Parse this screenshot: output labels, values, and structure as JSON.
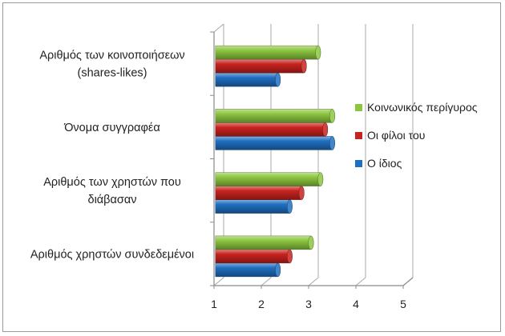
{
  "chart_data": {
    "type": "bar",
    "orientation": "horizontal",
    "style": "3d-cylinder",
    "categories": [
      [
        "Αριθμός  χρηστών συνδεδεμένοι"
      ],
      [
        "Αριθμός των χρηστών που",
        "διάβασαν"
      ],
      [
        "Όνομα συγγραφέα"
      ],
      [
        "Αριθμός των κοινοποιήσεων",
        "(shares-likes)"
      ]
    ],
    "series": [
      {
        "name": "Ο ίδιος",
        "color": "#1f6fc1",
        "values": [
          2.35,
          2.6,
          3.5,
          2.35
        ]
      },
      {
        "name": "Οι φίλοι του",
        "color": "#c8221e",
        "values": [
          2.6,
          2.85,
          3.35,
          2.9
        ]
      },
      {
        "name": "Κοινωνικός περίγυρος",
        "color": "#8cc63f",
        "values": [
          3.05,
          3.25,
          3.5,
          3.2
        ]
      }
    ],
    "xlim": [
      1,
      5
    ],
    "xticks": [
      "1",
      "2",
      "3",
      "4",
      "5"
    ],
    "grid": true,
    "legend_position": "right"
  }
}
